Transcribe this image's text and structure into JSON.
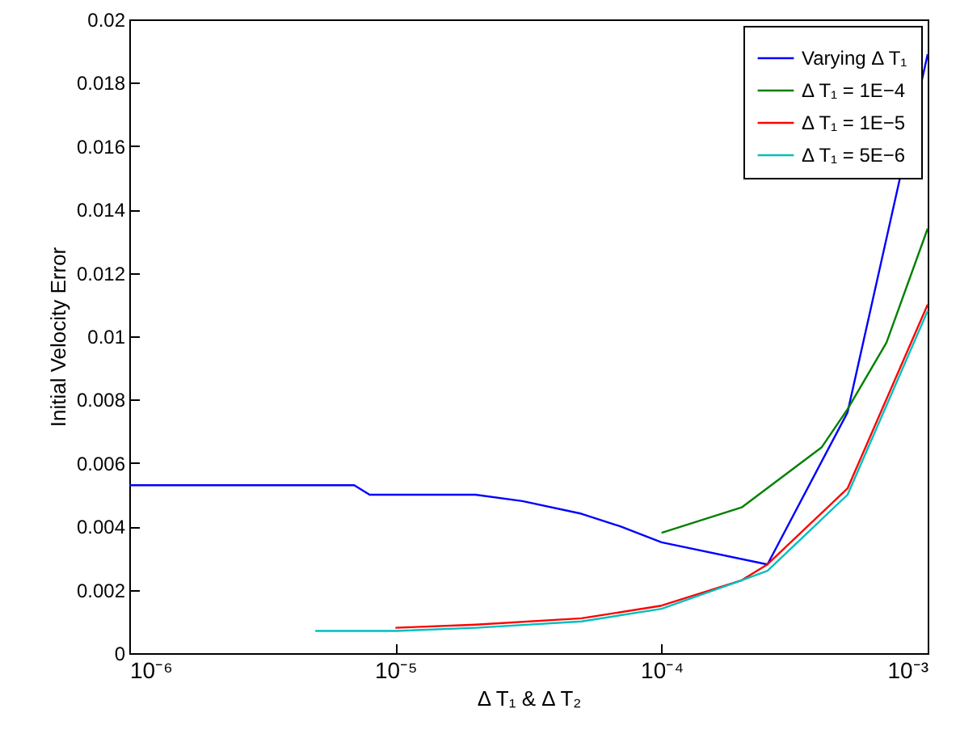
{
  "chart_data": {
    "type": "line",
    "xlabel": "Δ T₁ & Δ T₂",
    "ylabel": "Initial Velocity Error",
    "log": "x",
    "xlim": [
      1e-06,
      0.001
    ],
    "ylim": [
      0,
      0.02
    ],
    "xticks": [
      {
        "value": 1e-06,
        "label": "10⁻⁶"
      },
      {
        "value": 1e-05,
        "label": "10⁻⁵"
      },
      {
        "value": 0.0001,
        "label": "10⁻⁴"
      },
      {
        "value": 0.001,
        "label": "10⁻³"
      }
    ],
    "yticks": [
      0,
      0.002,
      0.004,
      0.006,
      0.008,
      0.01,
      0.012,
      0.014,
      0.016,
      0.018,
      0.02
    ],
    "grid": false,
    "legend": "top right",
    "line_style": "solid",
    "marker": "none",
    "series": [
      {
        "name": "Varying Δ T₁",
        "color": "#0000ff",
        "x": [
          1e-06,
          7e-06,
          8e-06,
          2e-05,
          3e-05,
          5e-05,
          7e-05,
          0.0001,
          0.00025,
          0.0005,
          0.001
        ],
        "values": [
          0.0053,
          0.0053,
          0.005,
          0.005,
          0.0048,
          0.0044,
          0.004,
          0.0035,
          0.0028,
          0.0076,
          0.0189
        ]
      },
      {
        "name": "Δ T₁ = 1E−4",
        "color": "#008000",
        "x": [
          0.0001,
          0.0002,
          0.0004,
          0.0005,
          0.0007,
          0.001
        ],
        "values": [
          0.0038,
          0.0046,
          0.0065,
          0.0077,
          0.0098,
          0.0134
        ]
      },
      {
        "name": "Δ T₁ = 1E−5",
        "color": "#ff0000",
        "x": [
          1e-05,
          2e-05,
          5e-05,
          0.0001,
          0.0002,
          0.00025,
          0.0005,
          0.001
        ],
        "values": [
          0.0008,
          0.0009,
          0.0011,
          0.0015,
          0.0023,
          0.0028,
          0.0052,
          0.011
        ]
      },
      {
        "name": "Δ T₁ = 5E−6",
        "color": "#00bfbf",
        "x": [
          5e-06,
          1e-05,
          2e-05,
          5e-05,
          0.0001,
          0.0002,
          0.00025,
          0.0005,
          0.001
        ],
        "values": [
          0.0007,
          0.0007,
          0.0008,
          0.001,
          0.0014,
          0.0023,
          0.0026,
          0.005,
          0.0108
        ]
      }
    ]
  }
}
